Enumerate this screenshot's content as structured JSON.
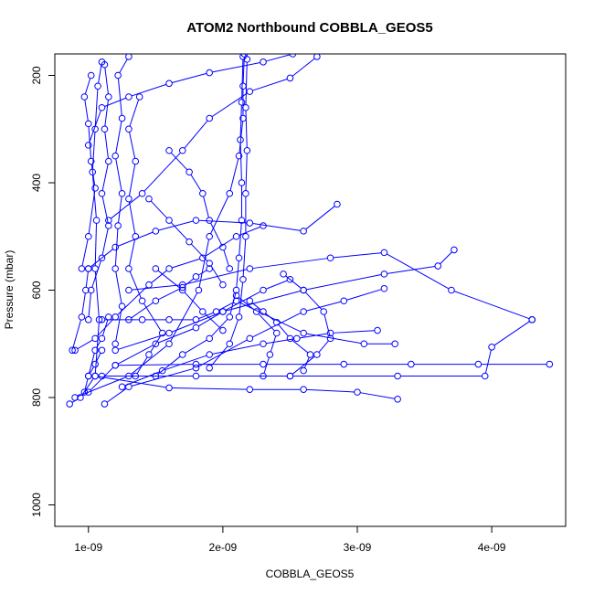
{
  "chart_data": {
    "type": "line",
    "title": "ATOM2 Northbound COBBLA_GEOS5",
    "xlabel": "COBBLA_GEOS5",
    "ylabel": "Pressure (mbar)",
    "xlim": [
      7.5e-10,
      4.55e-09
    ],
    "ylim": [
      1040,
      160
    ],
    "y_inverted": true,
    "x_ticks": [
      1e-09,
      2e-09,
      3e-09,
      4e-09
    ],
    "x_tick_labels": [
      "1e-09",
      "2e-09",
      "3e-09",
      "4e-09"
    ],
    "y_ticks": [
      200,
      400,
      600,
      800,
      1000
    ],
    "y_tick_labels": [
      "200",
      "400",
      "600",
      "800",
      "1000"
    ],
    "grid": false,
    "color": "#0000ff",
    "series": [
      {
        "points": [
          [
            8.6e-10,
            812
          ],
          [
            9.4e-10,
            800
          ],
          [
            1.05e-09,
            760
          ],
          [
            1.08e-09,
            655
          ],
          [
            1.05e-09,
            560
          ],
          [
            1.06e-09,
            470
          ],
          [
            1.03e-09,
            380
          ],
          [
            1.05e-09,
            300
          ],
          [
            1.07e-09,
            220
          ],
          [
            1.1e-09,
            175
          ]
        ]
      },
      {
        "points": [
          [
            9e-10,
            800
          ],
          [
            1.3e-09,
            760
          ],
          [
            1.6e-09,
            700
          ],
          [
            1.82e-09,
            600
          ],
          [
            1.9e-09,
            500
          ],
          [
            2.05e-09,
            420
          ],
          [
            2.12e-09,
            350
          ],
          [
            2.15e-09,
            280
          ],
          [
            2.15e-09,
            220
          ],
          [
            2.16e-09,
            160
          ]
        ]
      },
      {
        "points": [
          [
            1.12e-09,
            812
          ],
          [
            1.3e-09,
            780
          ],
          [
            1.8e-09,
            745
          ],
          [
            2.2e-09,
            690
          ],
          [
            2.6e-09,
            640
          ],
          [
            2.9e-09,
            620
          ],
          [
            3.2e-09,
            597
          ]
        ]
      },
      {
        "points": [
          [
            1.05e-09,
            760
          ],
          [
            1.6e-09,
            782
          ],
          [
            2.2e-09,
            785
          ],
          [
            2.6e-09,
            785
          ],
          [
            3e-09,
            790
          ],
          [
            3.3e-09,
            803
          ]
        ]
      },
      {
        "points": [
          [
            1.1e-09,
            760
          ],
          [
            1.8e-09,
            760
          ],
          [
            2.5e-09,
            760
          ],
          [
            3.3e-09,
            760
          ],
          [
            3.95e-09,
            760
          ],
          [
            4e-09,
            706
          ],
          [
            4.3e-09,
            655
          ]
        ]
      },
      {
        "points": [
          [
            1.2e-09,
            740
          ],
          [
            1.8e-09,
            738
          ],
          [
            2.3e-09,
            738
          ],
          [
            2.9e-09,
            738
          ],
          [
            3.4e-09,
            738
          ],
          [
            3.9e-09,
            738
          ],
          [
            4.43e-09,
            738
          ]
        ]
      },
      {
        "points": [
          [
            1.1e-09,
            655
          ],
          [
            1.4e-09,
            655
          ],
          [
            1.6e-09,
            655
          ],
          [
            1.8e-09,
            655
          ],
          [
            1.95e-09,
            640
          ],
          [
            2.1e-09,
            620
          ],
          [
            2.6e-09,
            680
          ],
          [
            3.05e-09,
            700
          ],
          [
            3.28e-09,
            700
          ]
        ]
      },
      {
        "points": [
          [
            1.2e-09,
            712
          ],
          [
            1.6e-09,
            680
          ],
          [
            2e-09,
            640
          ],
          [
            2.6e-09,
            600
          ],
          [
            3.2e-09,
            570
          ],
          [
            3.6e-09,
            555
          ],
          [
            3.72e-09,
            525
          ]
        ]
      },
      {
        "points": [
          [
            1.3e-09,
            600
          ],
          [
            1.7e-09,
            590
          ],
          [
            2.2e-09,
            560
          ],
          [
            2.8e-09,
            540
          ],
          [
            3.2e-09,
            530
          ],
          [
            3.7e-09,
            600
          ],
          [
            4.3e-09,
            655
          ]
        ]
      },
      {
        "points": [
          [
            1e-09,
            560
          ],
          [
            1.2e-09,
            520
          ],
          [
            1.5e-09,
            490
          ],
          [
            1.8e-09,
            470
          ],
          [
            2.2e-09,
            475
          ],
          [
            2.6e-09,
            490
          ],
          [
            2.85e-09,
            440
          ]
        ]
      },
      {
        "points": [
          [
            1e-09,
            330
          ],
          [
            1.1e-09,
            260
          ],
          [
            1.3e-09,
            240
          ],
          [
            1.6e-09,
            215
          ],
          [
            1.9e-09,
            195
          ],
          [
            2.3e-09,
            175
          ],
          [
            2.52e-09,
            160
          ]
        ]
      },
      {
        "points": [
          [
            1.15e-09,
            470
          ],
          [
            1.4e-09,
            420
          ],
          [
            1.7e-09,
            340
          ],
          [
            1.9e-09,
            280
          ],
          [
            2.2e-09,
            230
          ],
          [
            2.5e-09,
            205
          ],
          [
            2.7e-09,
            165
          ]
        ]
      },
      {
        "points": [
          [
            9.5e-10,
            560
          ],
          [
            1e-09,
            500
          ],
          [
            1.05e-09,
            410
          ],
          [
            1.02e-09,
            360
          ],
          [
            1e-09,
            290
          ],
          [
            9.7e-10,
            240
          ],
          [
            1.02e-09,
            200
          ]
        ]
      },
      {
        "points": [
          [
            1.2e-09,
            700
          ],
          [
            1.25e-09,
            630
          ],
          [
            1.2e-09,
            560
          ],
          [
            1.22e-09,
            480
          ],
          [
            1.25e-09,
            420
          ],
          [
            1.2e-09,
            350
          ],
          [
            1.25e-09,
            280
          ],
          [
            1.22e-09,
            200
          ],
          [
            1.3e-09,
            165
          ]
        ]
      },
      {
        "points": [
          [
            1.35e-09,
            760
          ],
          [
            1.45e-09,
            720
          ],
          [
            1.55e-09,
            680
          ],
          [
            1.4e-09,
            620
          ],
          [
            1.3e-09,
            560
          ],
          [
            1.35e-09,
            500
          ],
          [
            1.3e-09,
            430
          ],
          [
            1.35e-09,
            360
          ],
          [
            1.3e-09,
            300
          ],
          [
            1.38e-09,
            240
          ]
        ]
      },
      {
        "points": [
          [
            1e-09,
            655
          ],
          [
            1.02e-09,
            600
          ],
          [
            1.1e-09,
            540
          ],
          [
            1.15e-09,
            480
          ],
          [
            1.1e-09,
            420
          ],
          [
            1.15e-09,
            360
          ],
          [
            1.12e-09,
            300
          ],
          [
            1.15e-09,
            240
          ],
          [
            1.12e-09,
            180
          ]
        ]
      },
      {
        "points": [
          [
            1.5e-09,
            760
          ],
          [
            1.7e-09,
            720
          ],
          [
            1.9e-09,
            690
          ],
          [
            2.05e-09,
            650
          ],
          [
            2.1e-09,
            600
          ],
          [
            2.12e-09,
            540
          ],
          [
            2.14e-09,
            470
          ],
          [
            2.14e-09,
            400
          ],
          [
            2.13e-09,
            320
          ],
          [
            2.14e-09,
            250
          ],
          [
            2.15e-09,
            165
          ]
        ]
      },
      {
        "points": [
          [
            1.9e-09,
            745
          ],
          [
            2.05e-09,
            700
          ],
          [
            2.12e-09,
            650
          ],
          [
            2.15e-09,
            580
          ],
          [
            2.17e-09,
            500
          ],
          [
            2.17e-09,
            420
          ],
          [
            2.18e-09,
            340
          ],
          [
            2.17e-09,
            260
          ],
          [
            2.18e-09,
            170
          ]
        ]
      },
      {
        "points": [
          [
            9e-10,
            712
          ],
          [
            1.05e-09,
            690
          ],
          [
            1.2e-09,
            650
          ],
          [
            1.45e-09,
            590
          ],
          [
            1.6e-09,
            560
          ],
          [
            1.85e-09,
            540
          ],
          [
            2.1e-09,
            500
          ],
          [
            2.3e-09,
            480
          ]
        ]
      },
      {
        "points": [
          [
            1e-09,
            790
          ],
          [
            1.2e-09,
            740
          ],
          [
            1.5e-09,
            700
          ],
          [
            1.8e-09,
            670
          ],
          [
            2e-09,
            640
          ],
          [
            2.3e-09,
            600
          ],
          [
            2.5e-09,
            580
          ]
        ]
      },
      {
        "points": [
          [
            2.5e-09,
            760
          ],
          [
            2.7e-09,
            720
          ],
          [
            2.8e-09,
            690
          ],
          [
            2.75e-09,
            640
          ],
          [
            2.6e-09,
            600
          ],
          [
            2.45e-09,
            570
          ]
        ]
      },
      {
        "points": [
          [
            1.25e-09,
            780
          ],
          [
            1.55e-09,
            750
          ],
          [
            1.9e-09,
            720
          ],
          [
            2.3e-09,
            700
          ],
          [
            2.55e-09,
            690
          ],
          [
            2.8e-09,
            680
          ],
          [
            3.15e-09,
            675
          ]
        ]
      },
      {
        "points": [
          [
            8.8e-10,
            712
          ],
          [
            9.5e-10,
            650
          ],
          [
            9.8e-10,
            600
          ],
          [
            1e-09,
            560
          ]
        ]
      },
      {
        "points": [
          [
            1e-09,
            760
          ],
          [
            1.05e-09,
            712
          ],
          [
            1.1e-09,
            690
          ],
          [
            1.15e-09,
            650
          ]
        ]
      },
      {
        "points": [
          [
            9.7e-10,
            790
          ],
          [
            1e-09,
            760
          ],
          [
            1.05e-09,
            738
          ],
          [
            1.1e-09,
            712
          ]
        ]
      },
      {
        "points": [
          [
            1.6e-09,
            340
          ],
          [
            1.75e-09,
            380
          ],
          [
            1.85e-09,
            420
          ],
          [
            1.9e-09,
            470
          ],
          [
            2e-09,
            520
          ],
          [
            2.05e-09,
            560
          ]
        ]
      },
      {
        "points": [
          [
            1.45e-09,
            430
          ],
          [
            1.6e-09,
            470
          ],
          [
            1.75e-09,
            510
          ],
          [
            1.9e-09,
            550
          ],
          [
            2e-09,
            590
          ]
        ]
      },
      {
        "points": [
          [
            2.3e-09,
            760
          ],
          [
            2.35e-09,
            720
          ],
          [
            2.4e-09,
            680
          ],
          [
            2.25e-09,
            640
          ],
          [
            2.1e-09,
            610
          ]
        ]
      },
      {
        "points": [
          [
            2.6e-09,
            750
          ],
          [
            2.65e-09,
            720
          ],
          [
            2.5e-09,
            690
          ],
          [
            2.4e-09,
            660
          ],
          [
            2.3e-09,
            640
          ],
          [
            2.2e-09,
            620
          ]
        ]
      },
      {
        "points": [
          [
            1.3e-09,
            655
          ],
          [
            1.5e-09,
            620
          ],
          [
            1.7e-09,
            595
          ],
          [
            1.8e-09,
            575
          ],
          [
            1.9e-09,
            560
          ]
        ]
      },
      {
        "points": [
          [
            1.5e-09,
            560
          ],
          [
            1.7e-09,
            600
          ],
          [
            1.85e-09,
            640
          ],
          [
            2e-09,
            675
          ]
        ]
      }
    ]
  }
}
